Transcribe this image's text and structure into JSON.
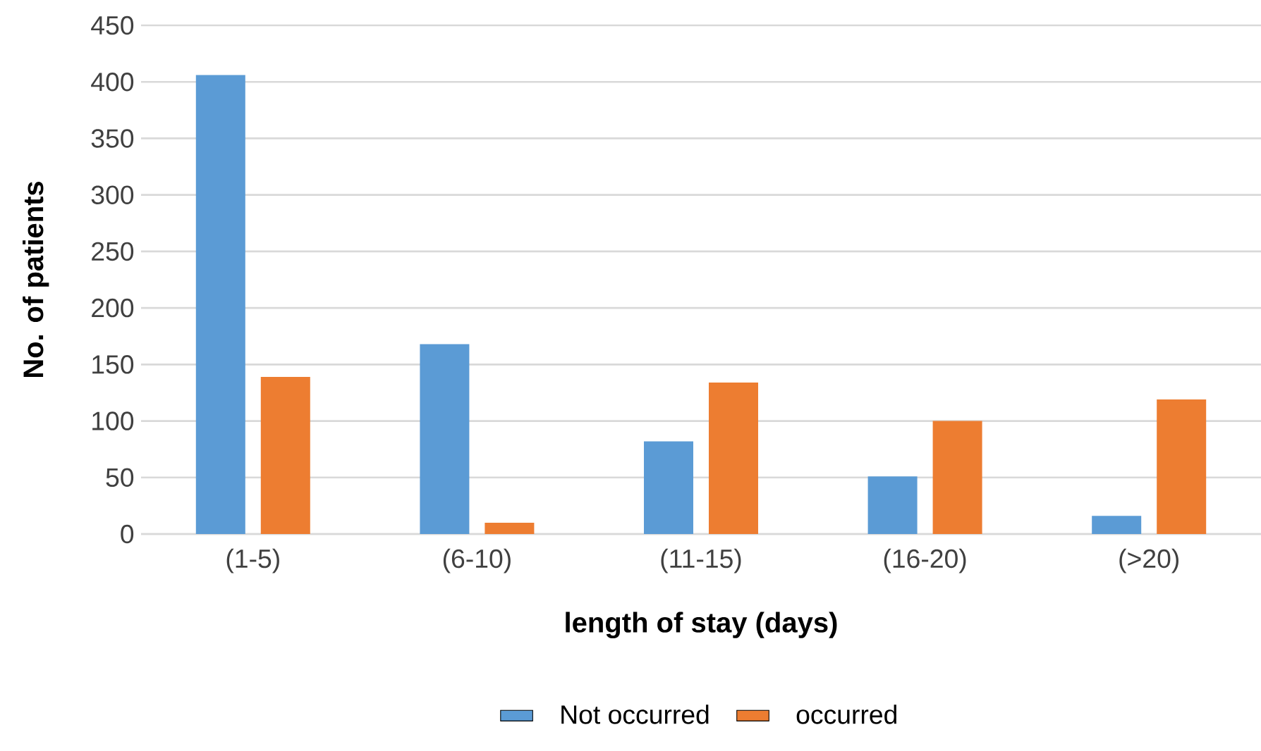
{
  "chart_data": {
    "type": "bar",
    "xlabel": "length of stay (days)",
    "ylabel": "No. of patients",
    "categories": [
      "(1-5)",
      "(6-10)",
      "(11-15)",
      "(16-20)",
      "(>20)"
    ],
    "series": [
      {
        "name": "Not occurred",
        "color": "#5b9bd5",
        "values": [
          406,
          168,
          82,
          51,
          16
        ]
      },
      {
        "name": "occurred",
        "color": "#ed7d31",
        "values": [
          139,
          10,
          134,
          100,
          119
        ]
      }
    ],
    "ylim": [
      0,
      450
    ],
    "yticks": [
      0,
      50,
      100,
      150,
      200,
      250,
      300,
      350,
      400,
      450
    ],
    "grid": "y",
    "legend": "bottom"
  }
}
